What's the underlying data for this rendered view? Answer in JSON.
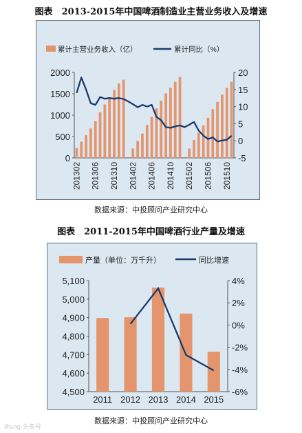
{
  "page": {
    "title1": "图表　2013-2015年中国啤酒制造业主营业务收入及增速",
    "source1": "数据来源：中投顾问产业研究中心",
    "title2": "图表　2011-2015年中国啤酒行业产量及增速",
    "source2": "数据来源：中投顾问产业研究中心",
    "watermark": "iFeng 头条号"
  },
  "colors": {
    "bar": "#e5956d",
    "line": "#1b3a6b",
    "panel": "#dbe8f2"
  },
  "chart_data": [
    {
      "type": "bar",
      "legend": [
        "累计主营业务收入（亿）",
        "累计同比（%）"
      ],
      "legend_placement": "top",
      "x": [
        "201302",
        "201303",
        "201304",
        "201305",
        "201306",
        "201307",
        "201308",
        "201309",
        "201310",
        "201311",
        "201312",
        "201401",
        "201402",
        "201403",
        "201404",
        "201405",
        "201406",
        "201407",
        "201408",
        "201409",
        "201410",
        "201411",
        "201412",
        "201501",
        "201502",
        "201503",
        "201504",
        "201505",
        "201506",
        "201507",
        "201508",
        "201509",
        "201510",
        "201511"
      ],
      "x_tick_labels": [
        "201302",
        "201306",
        "201310",
        "201402",
        "201406",
        "201410",
        "201502",
        "201506",
        "201510"
      ],
      "series": [
        {
          "name": "累计主营业务收入（亿）",
          "axis": "left",
          "kind": "bar",
          "values": [
            230,
            380,
            530,
            690,
            860,
            1070,
            1250,
            1420,
            1590,
            1740,
            1830,
            null,
            220,
            400,
            570,
            770,
            960,
            1160,
            1340,
            1510,
            1640,
            1780,
            1890,
            null,
            220,
            420,
            590,
            760,
            940,
            1140,
            1310,
            1480,
            1640,
            1780
          ]
        },
        {
          "name": "累计同比（%）",
          "axis": "right",
          "kind": "line",
          "values": [
            14,
            18.5,
            15,
            11,
            10.5,
            12.8,
            12.3,
            12.5,
            12.3,
            12.5,
            12.2,
            11.5,
            10.7,
            9.8,
            10.5,
            10,
            10.5,
            7,
            6,
            4,
            3.8,
            4.2,
            4.5,
            4,
            4.7,
            5.5,
            3,
            1.5,
            0.5,
            1,
            -0.2,
            0.1,
            0.3,
            1.5
          ]
        }
      ],
      "ylim_left": [
        0,
        2000
      ],
      "yticks_left": [
        0,
        500,
        1000,
        1500,
        2000
      ],
      "ylim_right": [
        -5,
        20
      ],
      "yticks_right": [
        -5,
        0,
        5,
        10,
        15,
        20
      ],
      "grid": false
    },
    {
      "type": "bar",
      "legend": [
        "产量（单位：万千升）",
        "同比增速"
      ],
      "legend_placement": "top",
      "categories": [
        "2011",
        "2012",
        "2013",
        "2014",
        "2015"
      ],
      "series": [
        {
          "name": "产量（单位：万千升）",
          "axis": "left",
          "kind": "bar",
          "values": [
            4898,
            4902,
            5062,
            4922,
            4716
          ]
        },
        {
          "name": "同比增速",
          "axis": "right",
          "kind": "line",
          "values": [
            null,
            0.1,
            3.3,
            -2.7,
            -4.1
          ]
        }
      ],
      "ylim_left": [
        4500,
        5100
      ],
      "yticks_left": [
        "4,500",
        "4,600",
        "4,700",
        "4,800",
        "4,900",
        "5,000",
        "5,100"
      ],
      "ylim_right": [
        -6,
        4
      ],
      "yticks_right": [
        "-6%",
        "-4%",
        "-2%",
        "0%",
        "2%",
        "4%"
      ],
      "grid": false
    }
  ]
}
